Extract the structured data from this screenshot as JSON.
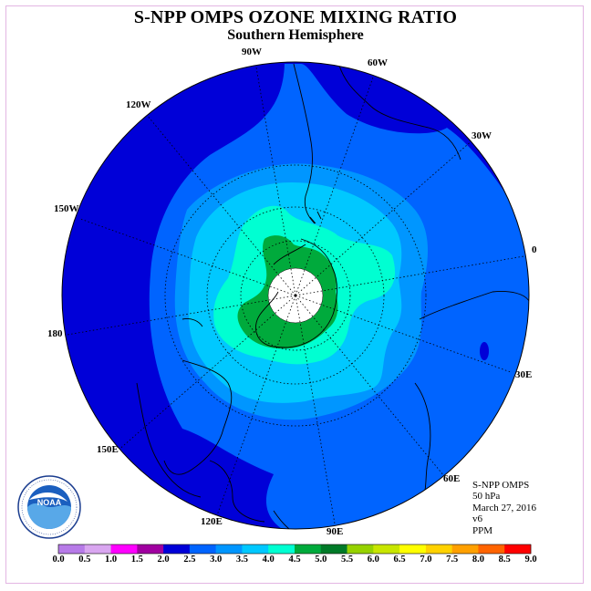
{
  "title": "S-NPP OMPS OZONE MIXING RATIO",
  "subtitle": "Southern Hemisphere",
  "longitude_labels": {
    "lon_90w": "90W",
    "lon_60w": "60W",
    "lon_30w": "30W",
    "lon_0": "0",
    "lon_30e": "30E",
    "lon_60e": "60E",
    "lon_90e": "90E",
    "lon_120e": "120E",
    "lon_150e": "150E",
    "lon_180": "180",
    "lon_150w": "150W",
    "lon_120w": "120W"
  },
  "info": {
    "instrument": "S-NPP OMPS",
    "pressure": "50 hPa",
    "date": "March 27, 2016",
    "version": "v6",
    "units": "PPM"
  },
  "logo_text": "NOAA",
  "colorbar": {
    "labels": [
      "0.0",
      "0.5",
      "1.0",
      "1.5",
      "2.0",
      "2.5",
      "3.0",
      "3.5",
      "4.0",
      "4.5",
      "5.0",
      "5.5",
      "6.0",
      "6.5",
      "7.0",
      "7.5",
      "8.0",
      "8.5",
      "9.0"
    ],
    "colors": [
      "#b77be8",
      "#d9a6f0",
      "#ff00ff",
      "#a000a0",
      "#0000d8",
      "#0064ff",
      "#0096ff",
      "#00c8ff",
      "#00ffd2",
      "#00aa3c",
      "#007a28",
      "#96d200",
      "#c8e600",
      "#ffff00",
      "#ffd200",
      "#ffa000",
      "#ff6400",
      "#ff0000",
      "#8b5a3c"
    ]
  },
  "ozone_colors": {
    "level_2_0": "#0000d8",
    "level_2_5": "#0064ff",
    "level_3_0": "#0096ff",
    "level_3_5": "#00c8ff",
    "level_4_0": "#00ffd2",
    "level_4_5": "#00aa3c",
    "no_data": "#ffffff"
  }
}
